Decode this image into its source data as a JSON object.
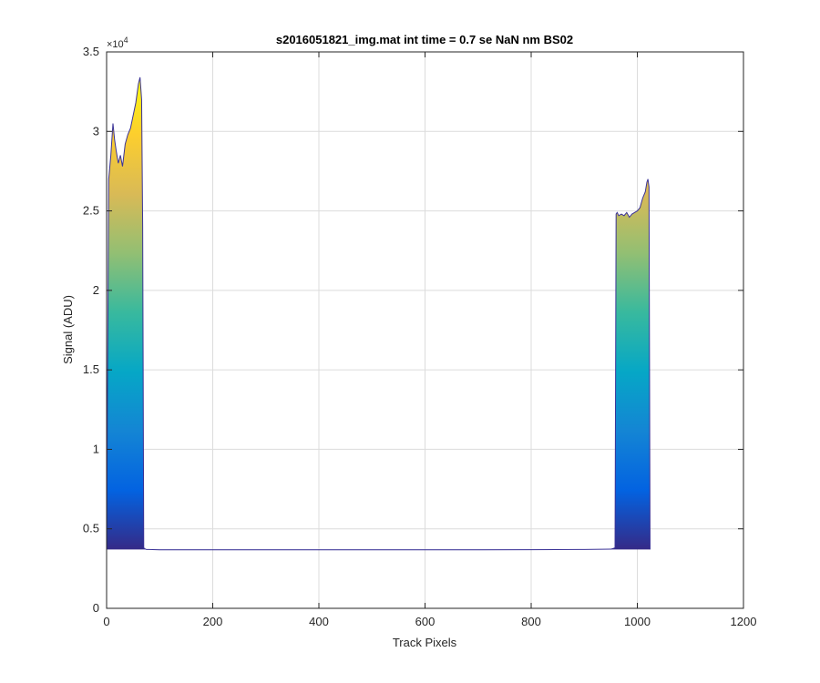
{
  "chart_data": {
    "type": "area",
    "title": "s2016051821_img.mat int time = 0.7 se  NaN nm BS02",
    "xlabel": "Track Pixels",
    "ylabel": "Signal (ADU)",
    "xlim": [
      0,
      1200
    ],
    "ylim": [
      0,
      35000
    ],
    "x_ticks": [
      0,
      200,
      400,
      600,
      800,
      1000,
      1200
    ],
    "x_tick_labels": [
      "0",
      "200",
      "400",
      "600",
      "800",
      "1000",
      "1200"
    ],
    "y_ticks": [
      0,
      5000,
      10000,
      15000,
      20000,
      25000,
      30000,
      35000
    ],
    "y_tick_labels": [
      "0",
      "0.5",
      "1",
      "1.5",
      "2",
      "2.5",
      "3",
      "3.5"
    ],
    "y_exponent_label": "×10",
    "y_exponent_power": "4",
    "grid": true,
    "colormap": "parula",
    "colormap_stops": [
      "#352a87",
      "#0363e1",
      "#1485d4",
      "#06a7c6",
      "#38b99e",
      "#92bf73",
      "#d9ba56",
      "#fcce2e",
      "#f9fb0e"
    ],
    "baseline": 3700,
    "series": [
      {
        "x": [
          0,
          4,
          8,
          12,
          15,
          18,
          22,
          26,
          30,
          35,
          40,
          45,
          50,
          55,
          60,
          63,
          66,
          68,
          70,
          72,
          75,
          80,
          100,
          200,
          300,
          400,
          500,
          600,
          700,
          800,
          900,
          950,
          958,
          960,
          962,
          965,
          970,
          975,
          980,
          985,
          990,
          995,
          1000,
          1005,
          1010,
          1015,
          1018,
          1020,
          1022,
          1024
        ],
        "y": [
          3700,
          27000,
          28500,
          30500,
          29500,
          28800,
          28000,
          28500,
          27800,
          29200,
          29800,
          30200,
          31000,
          31800,
          33000,
          33400,
          32000,
          24000,
          3800,
          3750,
          3700,
          3700,
          3680,
          3680,
          3680,
          3680,
          3680,
          3680,
          3680,
          3690,
          3700,
          3720,
          3800,
          24800,
          24900,
          24700,
          24800,
          24700,
          24900,
          24600,
          24800,
          24900,
          25000,
          25200,
          25800,
          26200,
          26800,
          27000,
          26500,
          3700
        ]
      }
    ]
  }
}
